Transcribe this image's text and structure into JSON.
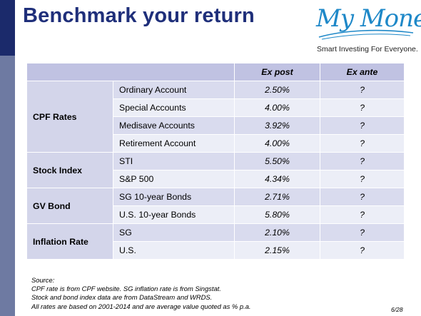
{
  "title": "Benchmark your return",
  "logo": {
    "brand": "My Money",
    "tagline": "Smart Investing For Everyone."
  },
  "table": {
    "headers": [
      "",
      "Ex post",
      "Ex ante"
    ],
    "groups": [
      {
        "name": "CPF Rates",
        "rows": [
          {
            "item": "Ordinary Account",
            "ex_post": "2.50%",
            "ex_ante": "?"
          },
          {
            "item": "Special Accounts",
            "ex_post": "4.00%",
            "ex_ante": "?"
          },
          {
            "item": "Medisave Accounts",
            "ex_post": "3.92%",
            "ex_ante": "?"
          },
          {
            "item": "Retirement Account",
            "ex_post": "4.00%",
            "ex_ante": "?"
          }
        ]
      },
      {
        "name": "Stock Index",
        "rows": [
          {
            "item": "STI",
            "ex_post": "5.50%",
            "ex_ante": "?"
          },
          {
            "item": "S&P 500",
            "ex_post": "4.34%",
            "ex_ante": "?"
          }
        ]
      },
      {
        "name": "GV Bond",
        "rows": [
          {
            "item": "SG 10-year Bonds",
            "ex_post": "2.71%",
            "ex_ante": "?"
          },
          {
            "item": "U.S. 10-year Bonds",
            "ex_post": "5.80%",
            "ex_ante": "?"
          }
        ]
      },
      {
        "name": "Inflation Rate",
        "rows": [
          {
            "item": "SG",
            "ex_post": "2.10%",
            "ex_ante": "?"
          },
          {
            "item": "U.S.",
            "ex_post": "2.15%",
            "ex_ante": "?"
          }
        ]
      }
    ]
  },
  "source": {
    "label": "Source:",
    "lines": [
      "CPF rate is from CPF website.  SG inflation rate is from Singstat.",
      "Stock and bond index data are from DataStream and WRDS.",
      "All rates are based on 2001-2014 and are average value quoted as % p.a."
    ]
  },
  "page_number": "6/28",
  "colors": {
    "title": "#1f2f7a",
    "logo": "#1e88c8",
    "left_bar_top": "#1b2a6b",
    "left_bar_bottom": "#6e7aa2",
    "header_fill": "#c0c2e2",
    "row_dark": "#d9dbee",
    "row_light": "#eceef7"
  }
}
